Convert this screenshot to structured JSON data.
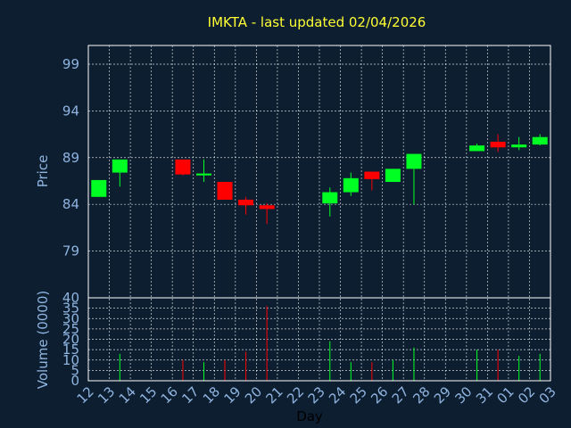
{
  "chart_data": {
    "type": "candlestick",
    "title": "IMKTA - last updated 02/04/2026",
    "xlabel": "Day",
    "price_panel": {
      "ylabel": "Price",
      "ylim": [
        74,
        101
      ],
      "yticks": [
        "99",
        "94",
        "89",
        "84",
        "79"
      ]
    },
    "volume_panel": {
      "ylabel": "Volume (0000)",
      "ylim": [
        0,
        40
      ],
      "yticks": [
        "40",
        "35",
        "30",
        "25",
        "20",
        "15",
        "10",
        "5",
        "0"
      ]
    },
    "x_tick_labels": [
      "12",
      "13",
      "14",
      "15",
      "16",
      "17",
      "18",
      "19",
      "20",
      "21",
      "22",
      "23",
      "24",
      "25",
      "26",
      "27",
      "28",
      "29",
      "30",
      "31",
      "01",
      "02",
      "03"
    ],
    "grid": true,
    "colors": {
      "up": "#00ff22",
      "down": "#ff0000",
      "background": "#0d1e30",
      "plot_frame": "#ffffff",
      "grid": "#ffffff"
    },
    "candles": [
      {
        "x": 0.0,
        "open": 84.8,
        "high": 86.6,
        "low": 84.8,
        "close": 86.6,
        "volume": 0
      },
      {
        "x": 1.0,
        "open": 87.4,
        "high": 88.8,
        "low": 85.9,
        "close": 88.8,
        "volume": 13
      },
      {
        "x": 4.0,
        "open": 88.8,
        "high": 88.8,
        "low": 87.1,
        "close": 87.2,
        "volume": 10
      },
      {
        "x": 5.0,
        "open": 87.1,
        "high": 88.8,
        "low": 86.4,
        "close": 87.3,
        "volume": 9
      },
      {
        "x": 6.0,
        "open": 86.4,
        "high": 86.4,
        "low": 84.5,
        "close": 84.5,
        "volume": 10
      },
      {
        "x": 7.0,
        "open": 84.5,
        "high": 84.8,
        "low": 82.9,
        "close": 83.9,
        "volume": 14
      },
      {
        "x": 8.0,
        "open": 83.9,
        "high": 84.1,
        "low": 81.9,
        "close": 83.5,
        "volume": 36
      },
      {
        "x": 11.0,
        "open": 84.1,
        "high": 85.8,
        "low": 82.7,
        "close": 85.3,
        "volume": 19
      },
      {
        "x": 12.0,
        "open": 85.3,
        "high": 87.4,
        "low": 84.9,
        "close": 86.8,
        "volume": 9
      },
      {
        "x": 13.0,
        "open": 87.5,
        "high": 87.5,
        "low": 85.5,
        "close": 86.7,
        "volume": 9
      },
      {
        "x": 14.0,
        "open": 86.4,
        "high": 87.8,
        "low": 86.4,
        "close": 87.8,
        "volume": 10
      },
      {
        "x": 15.0,
        "open": 87.8,
        "high": 89.4,
        "low": 84.0,
        "close": 89.4,
        "volume": 16
      },
      {
        "x": 18.0,
        "open": 89.7,
        "high": 90.5,
        "low": 89.7,
        "close": 90.3,
        "volume": 15
      },
      {
        "x": 19.0,
        "open": 90.7,
        "high": 91.5,
        "low": 89.6,
        "close": 90.1,
        "volume": 15
      },
      {
        "x": 20.0,
        "open": 90.1,
        "high": 91.2,
        "low": 89.8,
        "close": 90.4,
        "volume": 12
      },
      {
        "x": 21.0,
        "open": 90.4,
        "high": 91.5,
        "low": 90.3,
        "close": 91.2,
        "volume": 13
      }
    ]
  }
}
